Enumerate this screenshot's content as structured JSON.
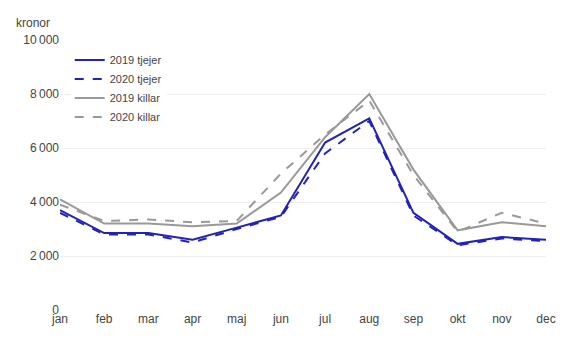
{
  "chart_data": {
    "type": "line",
    "ylabel": "kronor",
    "categories": [
      "jan",
      "feb",
      "mar",
      "apr",
      "maj",
      "jun",
      "jul",
      "aug",
      "sep",
      "okt",
      "nov",
      "dec"
    ],
    "series": [
      {
        "name": "2019 tjejer",
        "color": "#2222BB",
        "line_style": "solid",
        "values": [
          3700,
          2850,
          2850,
          2600,
          3050,
          3500,
          6200,
          7100,
          3600,
          2450,
          2700,
          2600
        ]
      },
      {
        "name": "2020 tjejer",
        "color": "#2222BB",
        "line_style": "dashed",
        "values": [
          3600,
          2800,
          2800,
          2500,
          3000,
          3450,
          5800,
          7000,
          3500,
          2400,
          2650,
          2550
        ]
      },
      {
        "name": "2019 killar",
        "color": "#999999",
        "line_style": "solid",
        "values": [
          4100,
          3200,
          3200,
          3100,
          3200,
          4350,
          6400,
          8000,
          5200,
          2950,
          3250,
          3100
        ]
      },
      {
        "name": "2020 killar",
        "color": "#999999",
        "line_style": "dashed",
        "values": [
          3900,
          3300,
          3350,
          3250,
          3300,
          5050,
          6500,
          7750,
          5000,
          2900,
          3600,
          3200
        ]
      }
    ],
    "ylim": [
      0,
      10000
    ],
    "yticks": [
      0,
      {
        "value": 2000,
        "label": "2 000"
      },
      {
        "value": 4000,
        "label": "4 000"
      },
      {
        "value": 6000,
        "label": "6 000"
      },
      {
        "value": 8000,
        "label": "8 000"
      },
      {
        "value": 10000,
        "label": "10 000"
      }
    ],
    "grid": true,
    "legend": "upper left"
  }
}
